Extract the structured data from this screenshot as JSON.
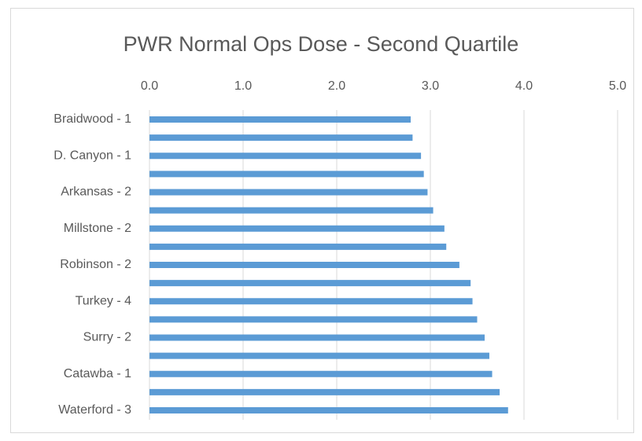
{
  "chart_data": {
    "type": "hbar",
    "title": "PWR Normal Ops Dose - Second Quartile",
    "categories": [
      "Braidwood - 1",
      null,
      "D. Canyon - 1",
      null,
      "Arkansas - 2",
      null,
      "Millstone - 2",
      null,
      "Robinson - 2",
      null,
      "Turkey - 4",
      null,
      "Surry - 2",
      null,
      "Catawba - 1",
      null,
      "Waterford - 3"
    ],
    "values": [
      2.79,
      2.81,
      2.9,
      2.93,
      2.97,
      3.03,
      3.15,
      3.17,
      3.31,
      3.43,
      3.45,
      3.5,
      3.58,
      3.63,
      3.66,
      3.74,
      3.83
    ],
    "color": "#5b9bd5",
    "xlim": [
      0,
      5
    ],
    "xticks": [
      {
        "value": 0,
        "label": "0.0"
      },
      {
        "value": 1,
        "label": "1.0"
      },
      {
        "value": 2,
        "label": "2.0"
      },
      {
        "value": 3,
        "label": "3.0"
      },
      {
        "value": 4,
        "label": "4.0"
      },
      {
        "value": 5,
        "label": "5.0"
      }
    ],
    "grid": true
  }
}
